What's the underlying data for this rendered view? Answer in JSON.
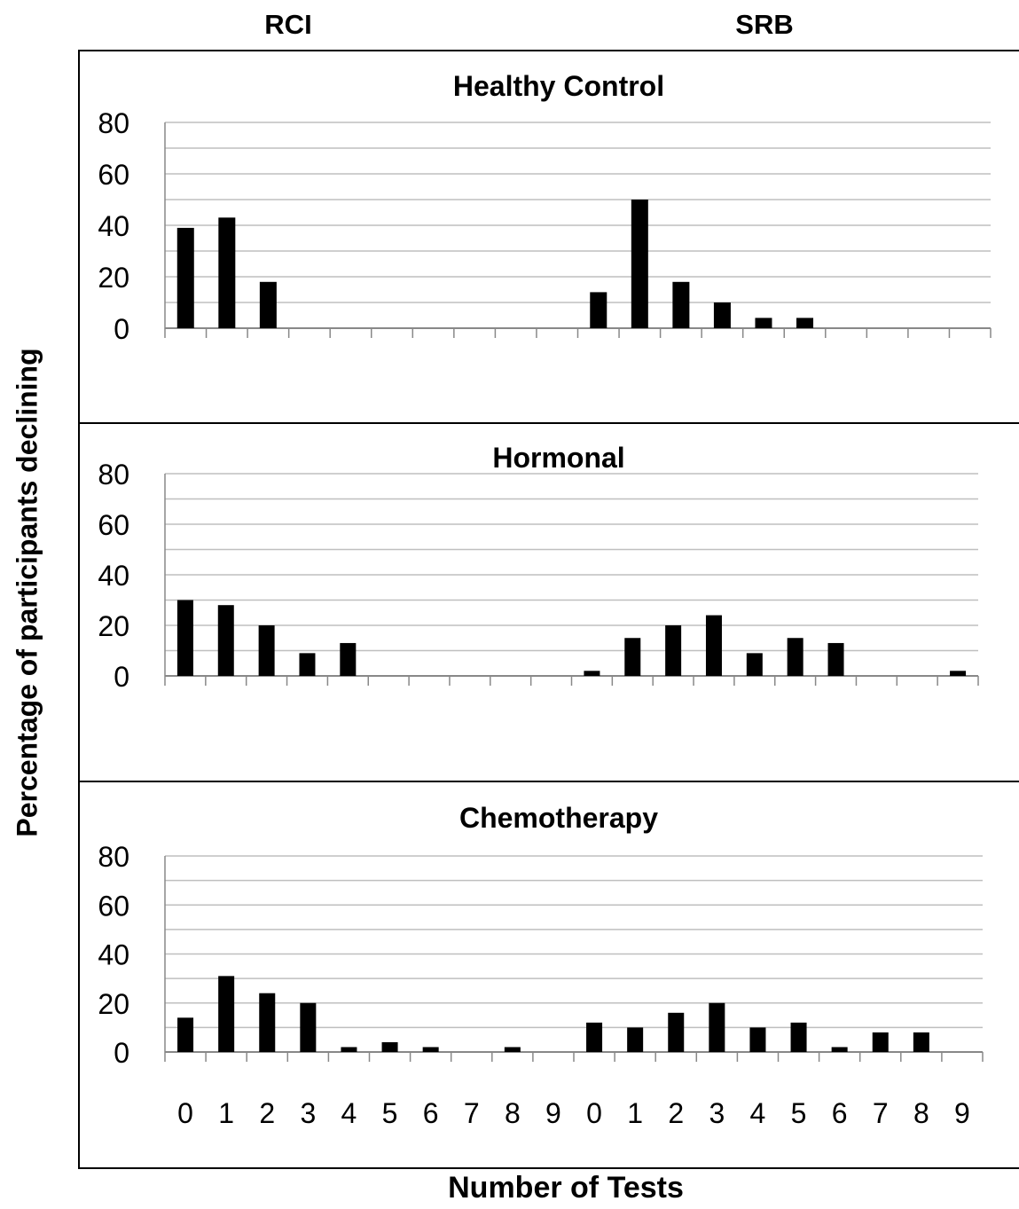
{
  "column_headers": {
    "left": "RCI",
    "right": "SRB"
  },
  "y_axis_title": "Percentage of participants declining",
  "x_axis_title": "Number of Tests",
  "chart_data": [
    {
      "type": "bar",
      "title": "Healthy Control",
      "ylim": [
        0,
        80
      ],
      "yticks": [
        0,
        20,
        40,
        60,
        80
      ],
      "grid": true,
      "categories": [
        "0",
        "1",
        "2",
        "3",
        "4",
        "5",
        "6",
        "7",
        "8",
        "9"
      ],
      "series": [
        {
          "group": "RCI",
          "values": [
            39,
            43,
            18,
            0,
            0,
            0,
            0,
            0,
            0,
            0
          ]
        },
        {
          "group": "SRB",
          "values": [
            14,
            50,
            18,
            10,
            4,
            4,
            0,
            0,
            0,
            0
          ]
        }
      ]
    },
    {
      "type": "bar",
      "title": "Hormonal",
      "ylim": [
        0,
        80
      ],
      "yticks": [
        0,
        20,
        40,
        60,
        80
      ],
      "grid": true,
      "categories": [
        "0",
        "1",
        "2",
        "3",
        "4",
        "5",
        "6",
        "7",
        "8",
        "9"
      ],
      "series": [
        {
          "group": "RCI",
          "values": [
            30,
            28,
            20,
            9,
            13,
            0,
            0,
            0,
            0,
            0
          ]
        },
        {
          "group": "SRB",
          "values": [
            2,
            15,
            20,
            24,
            9,
            15,
            13,
            0,
            0,
            2
          ]
        }
      ]
    },
    {
      "type": "bar",
      "title": "Chemotherapy",
      "ylim": [
        0,
        80
      ],
      "yticks": [
        0,
        20,
        40,
        60,
        80
      ],
      "grid": true,
      "categories": [
        "0",
        "1",
        "2",
        "3",
        "4",
        "5",
        "6",
        "7",
        "8",
        "9"
      ],
      "series": [
        {
          "group": "RCI",
          "values": [
            14,
            31,
            24,
            20,
            2,
            4,
            2,
            0,
            2,
            0
          ]
        },
        {
          "group": "SRB",
          "values": [
            12,
            10,
            16,
            20,
            10,
            12,
            2,
            8,
            8,
            0
          ]
        }
      ]
    }
  ]
}
